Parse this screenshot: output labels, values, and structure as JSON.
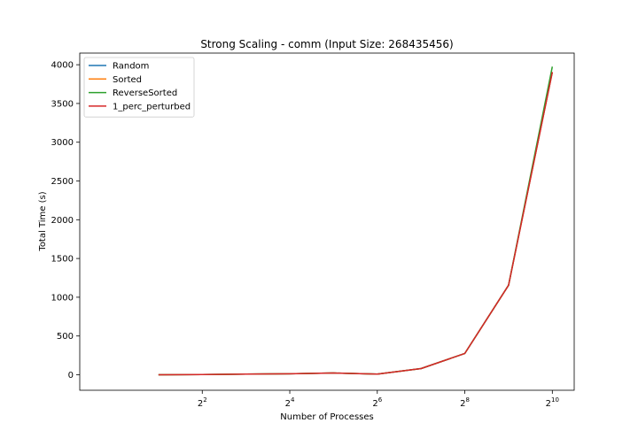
{
  "chart_data": {
    "type": "line",
    "title": "Strong Scaling - comm (Input Size: 268435456)",
    "xlabel": "Number of Processes",
    "ylabel": "Total Time (s)",
    "xscale": "log2",
    "xlim_exp": [
      -0.8,
      10.5
    ],
    "ylim": [
      -200,
      4150
    ],
    "x_ticks": [
      {
        "exp": 2,
        "base": "2",
        "sup": "2"
      },
      {
        "exp": 4,
        "base": "2",
        "sup": "4"
      },
      {
        "exp": 6,
        "base": "2",
        "sup": "6"
      },
      {
        "exp": 8,
        "base": "2",
        "sup": "8"
      },
      {
        "exp": 10,
        "base": "2",
        "sup": "10"
      }
    ],
    "y_ticks": [
      0,
      500,
      1000,
      1500,
      2000,
      2500,
      3000,
      3500,
      4000
    ],
    "x": [
      2,
      4,
      8,
      16,
      32,
      64,
      128,
      256,
      512,
      1024
    ],
    "series": [
      {
        "name": "Random",
        "color": "#1f77b4",
        "values": [
          0,
          3,
          8,
          12,
          22,
          8,
          80,
          275,
          1155,
          3905
        ]
      },
      {
        "name": "Sorted",
        "color": "#ff7f0e",
        "values": [
          0,
          3,
          8,
          12,
          22,
          8,
          80,
          275,
          1155,
          3905
        ]
      },
      {
        "name": "ReverseSorted",
        "color": "#2ca02c",
        "values": [
          0,
          3,
          8,
          12,
          22,
          8,
          80,
          275,
          1155,
          3975
        ]
      },
      {
        "name": "1_perc_perturbed",
        "color": "#d62728",
        "values": [
          0,
          3,
          8,
          12,
          22,
          8,
          80,
          275,
          1155,
          3905
        ]
      }
    ],
    "legend_position": "upper-left",
    "grid": false
  }
}
